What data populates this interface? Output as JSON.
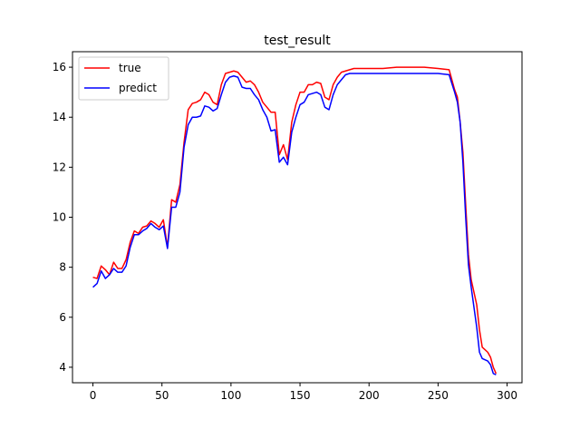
{
  "chart_data": {
    "type": "line",
    "title": "test_result",
    "xlabel": "",
    "ylabel": "",
    "xlim": [
      -14.8,
      310.8
    ],
    "ylim": [
      3.38,
      16.62
    ],
    "xticks": [
      0,
      50,
      100,
      150,
      200,
      250,
      300
    ],
    "yticks": [
      4,
      6,
      8,
      10,
      12,
      14,
      16
    ],
    "grid": false,
    "legend_position": "top-left",
    "series": [
      {
        "name": "true",
        "color": "#ff0000",
        "points": [
          [
            0,
            7.6
          ],
          [
            3,
            7.55
          ],
          [
            6,
            8.05
          ],
          [
            9,
            7.9
          ],
          [
            12,
            7.7
          ],
          [
            15,
            8.2
          ],
          [
            18,
            7.95
          ],
          [
            21,
            7.95
          ],
          [
            24,
            8.3
          ],
          [
            27,
            9.0
          ],
          [
            30,
            9.45
          ],
          [
            33,
            9.35
          ],
          [
            36,
            9.6
          ],
          [
            39,
            9.65
          ],
          [
            42,
            9.85
          ],
          [
            45,
            9.75
          ],
          [
            48,
            9.6
          ],
          [
            51,
            9.9
          ],
          [
            54,
            8.8
          ],
          [
            57,
            10.7
          ],
          [
            60,
            10.6
          ],
          [
            63,
            11.3
          ],
          [
            66,
            13.0
          ],
          [
            69,
            14.3
          ],
          [
            72,
            14.55
          ],
          [
            75,
            14.6
          ],
          [
            78,
            14.7
          ],
          [
            81,
            15.0
          ],
          [
            84,
            14.9
          ],
          [
            87,
            14.6
          ],
          [
            90,
            14.5
          ],
          [
            93,
            15.3
          ],
          [
            96,
            15.75
          ],
          [
            99,
            15.8
          ],
          [
            102,
            15.85
          ],
          [
            105,
            15.8
          ],
          [
            108,
            15.6
          ],
          [
            111,
            15.4
          ],
          [
            114,
            15.45
          ],
          [
            117,
            15.3
          ],
          [
            120,
            15.0
          ],
          [
            123,
            14.6
          ],
          [
            126,
            14.4
          ],
          [
            129,
            14.2
          ],
          [
            132,
            14.2
          ],
          [
            135,
            12.5
          ],
          [
            138,
            12.9
          ],
          [
            141,
            12.3
          ],
          [
            144,
            13.8
          ],
          [
            147,
            14.5
          ],
          [
            150,
            15.0
          ],
          [
            153,
            15.0
          ],
          [
            156,
            15.3
          ],
          [
            159,
            15.3
          ],
          [
            162,
            15.4
          ],
          [
            165,
            15.35
          ],
          [
            168,
            14.8
          ],
          [
            171,
            14.7
          ],
          [
            174,
            15.3
          ],
          [
            177,
            15.6
          ],
          [
            180,
            15.8
          ],
          [
            183,
            15.85
          ],
          [
            186,
            15.9
          ],
          [
            189,
            15.95
          ],
          [
            192,
            15.95
          ],
          [
            195,
            15.95
          ],
          [
            200,
            15.95
          ],
          [
            210,
            15.95
          ],
          [
            220,
            16.0
          ],
          [
            230,
            16.0
          ],
          [
            240,
            16.0
          ],
          [
            250,
            15.95
          ],
          [
            258,
            15.9
          ],
          [
            262,
            15.1
          ],
          [
            264,
            14.8
          ],
          [
            266,
            13.8
          ],
          [
            268,
            12.6
          ],
          [
            270,
            10.5
          ],
          [
            272,
            8.5
          ],
          [
            274,
            7.5
          ],
          [
            276,
            7.0
          ],
          [
            278,
            6.5
          ],
          [
            280,
            5.5
          ],
          [
            282,
            4.8
          ],
          [
            284,
            4.7
          ],
          [
            286,
            4.6
          ],
          [
            288,
            4.4
          ],
          [
            290,
            4.0
          ],
          [
            292,
            3.75
          ]
        ]
      },
      {
        "name": "predict",
        "color": "#0000ff",
        "points": [
          [
            0,
            7.2
          ],
          [
            3,
            7.35
          ],
          [
            6,
            7.85
          ],
          [
            9,
            7.55
          ],
          [
            12,
            7.7
          ],
          [
            15,
            7.95
          ],
          [
            18,
            7.8
          ],
          [
            21,
            7.8
          ],
          [
            24,
            8.05
          ],
          [
            27,
            8.8
          ],
          [
            30,
            9.3
          ],
          [
            33,
            9.3
          ],
          [
            36,
            9.45
          ],
          [
            39,
            9.55
          ],
          [
            42,
            9.75
          ],
          [
            45,
            9.6
          ],
          [
            48,
            9.5
          ],
          [
            51,
            9.65
          ],
          [
            54,
            8.75
          ],
          [
            57,
            10.4
          ],
          [
            60,
            10.4
          ],
          [
            63,
            11.0
          ],
          [
            66,
            12.8
          ],
          [
            69,
            13.7
          ],
          [
            72,
            14.0
          ],
          [
            75,
            14.0
          ],
          [
            78,
            14.05
          ],
          [
            81,
            14.45
          ],
          [
            84,
            14.4
          ],
          [
            87,
            14.25
          ],
          [
            90,
            14.35
          ],
          [
            93,
            14.9
          ],
          [
            96,
            15.4
          ],
          [
            99,
            15.6
          ],
          [
            102,
            15.65
          ],
          [
            105,
            15.6
          ],
          [
            108,
            15.2
          ],
          [
            111,
            15.15
          ],
          [
            114,
            15.15
          ],
          [
            117,
            14.9
          ],
          [
            120,
            14.7
          ],
          [
            123,
            14.3
          ],
          [
            126,
            14.0
          ],
          [
            129,
            13.45
          ],
          [
            132,
            13.5
          ],
          [
            135,
            12.2
          ],
          [
            138,
            12.4
          ],
          [
            141,
            12.1
          ],
          [
            144,
            13.4
          ],
          [
            147,
            14.0
          ],
          [
            150,
            14.5
          ],
          [
            153,
            14.6
          ],
          [
            156,
            14.9
          ],
          [
            159,
            14.95
          ],
          [
            162,
            15.0
          ],
          [
            165,
            14.9
          ],
          [
            168,
            14.4
          ],
          [
            171,
            14.3
          ],
          [
            174,
            14.9
          ],
          [
            177,
            15.3
          ],
          [
            180,
            15.5
          ],
          [
            183,
            15.7
          ],
          [
            186,
            15.75
          ],
          [
            189,
            15.75
          ],
          [
            192,
            15.75
          ],
          [
            200,
            15.75
          ],
          [
            210,
            15.75
          ],
          [
            220,
            15.75
          ],
          [
            230,
            15.75
          ],
          [
            240,
            15.75
          ],
          [
            250,
            15.75
          ],
          [
            258,
            15.7
          ],
          [
            262,
            15.0
          ],
          [
            264,
            14.6
          ],
          [
            266,
            13.8
          ],
          [
            268,
            12.2
          ],
          [
            270,
            10.0
          ],
          [
            272,
            8.1
          ],
          [
            274,
            7.2
          ],
          [
            276,
            6.4
          ],
          [
            278,
            5.6
          ],
          [
            280,
            4.6
          ],
          [
            282,
            4.35
          ],
          [
            284,
            4.3
          ],
          [
            286,
            4.25
          ],
          [
            288,
            4.1
          ],
          [
            290,
            3.75
          ],
          [
            292,
            3.7
          ]
        ]
      }
    ]
  }
}
